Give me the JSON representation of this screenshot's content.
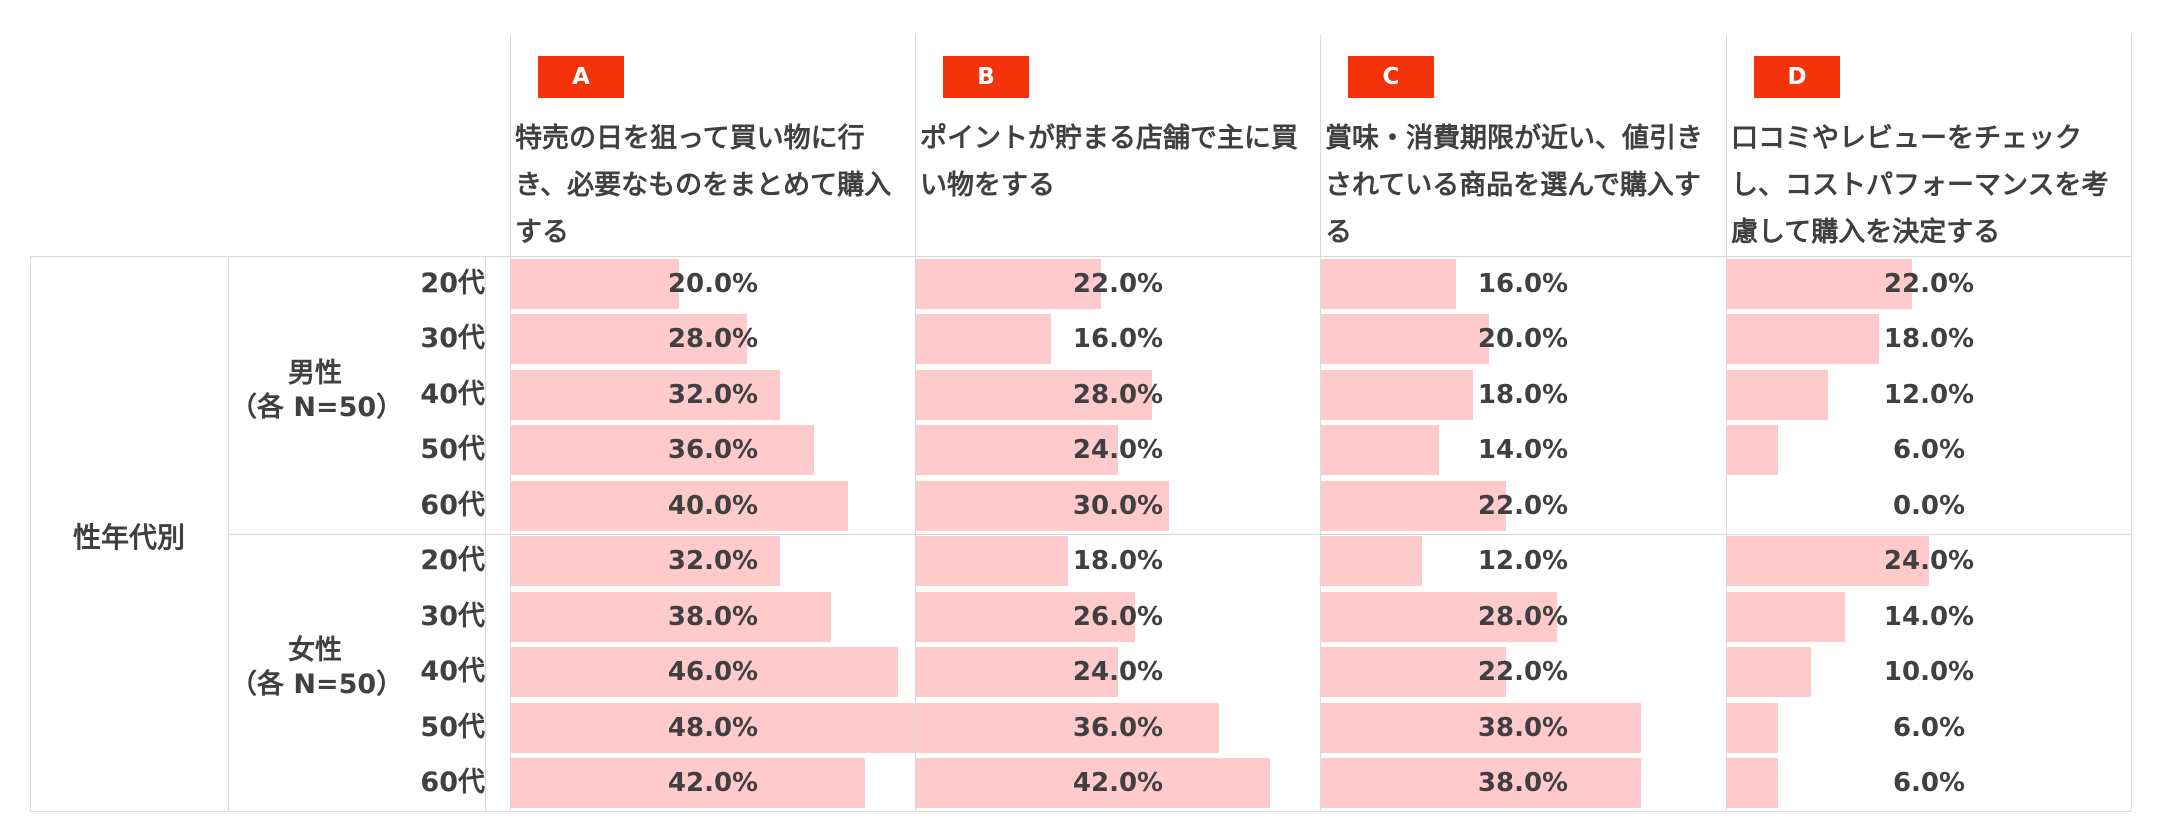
{
  "outer_label": "性年代別",
  "groups": [
    {
      "name": "男性",
      "n": "（各 N=50）"
    },
    {
      "name": "女性",
      "n": "（各 N=50）"
    }
  ],
  "colors": {
    "bar": "#fecacc",
    "badge": "#f5330a",
    "grid": "#d9d9d9",
    "text": "#404040"
  },
  "chart_data": {
    "type": "bar",
    "orientation": "horizontal",
    "columns": [
      {
        "badge": "A",
        "label": "特売の日を狙って買い物に行き、必要なものをまとめて購入する"
      },
      {
        "badge": "B",
        "label": "ポイントが貯まる店舗で主に買い物をする"
      },
      {
        "badge": "C",
        "label": "賞味・消費期限が近い、値引きされている商品を選んで購入する"
      },
      {
        "badge": "D",
        "label": "口コミやレビューをチェックし、コストパフォーマンスを考慮して購入を決定する"
      }
    ],
    "rows": [
      {
        "group": "男性",
        "age": "20代"
      },
      {
        "group": "男性",
        "age": "30代"
      },
      {
        "group": "男性",
        "age": "40代"
      },
      {
        "group": "男性",
        "age": "50代"
      },
      {
        "group": "男性",
        "age": "60代"
      },
      {
        "group": "女性",
        "age": "20代"
      },
      {
        "group": "女性",
        "age": "30代"
      },
      {
        "group": "女性",
        "age": "40代"
      },
      {
        "group": "女性",
        "age": "50代"
      },
      {
        "group": "女性",
        "age": "60代"
      }
    ],
    "series": [
      {
        "values": [
          20.0,
          28.0,
          32.0,
          36.0,
          40.0,
          32.0,
          38.0,
          46.0,
          48.0,
          42.0
        ]
      },
      {
        "values": [
          22.0,
          16.0,
          28.0,
          24.0,
          30.0,
          18.0,
          26.0,
          24.0,
          36.0,
          42.0
        ]
      },
      {
        "values": [
          16.0,
          20.0,
          18.0,
          14.0,
          22.0,
          12.0,
          28.0,
          22.0,
          38.0,
          38.0
        ]
      },
      {
        "values": [
          22.0,
          18.0,
          12.0,
          6.0,
          0.0,
          24.0,
          14.0,
          10.0,
          6.0,
          6.0
        ]
      }
    ],
    "value_format": "0.0%",
    "max_value": 48.0
  }
}
